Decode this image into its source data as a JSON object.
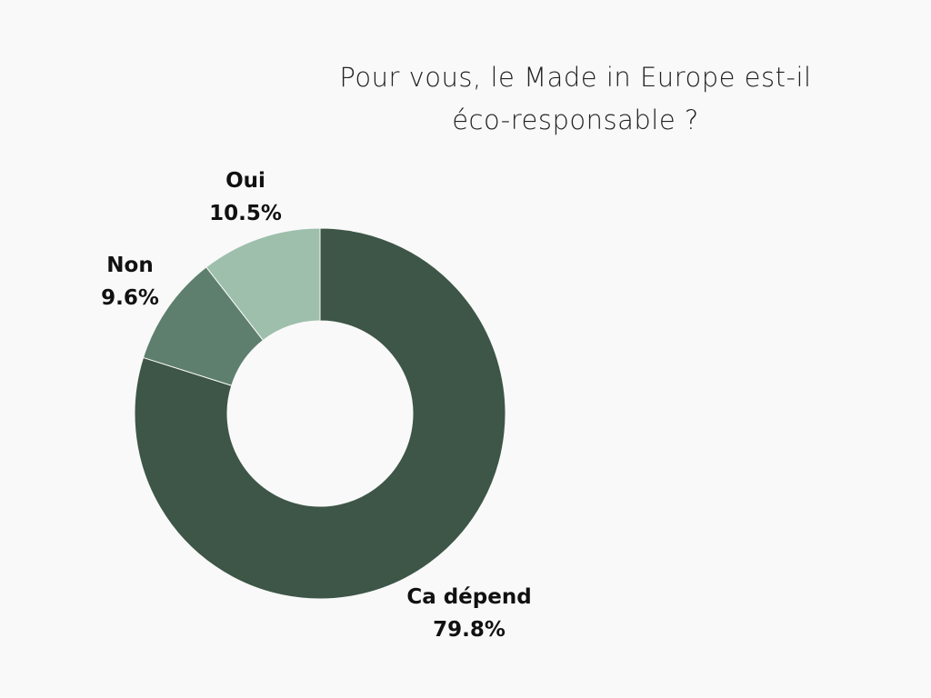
{
  "chart_data": {
    "type": "pie",
    "donut": true,
    "title_lines": [
      "Pour vous, le Made in Europe est-il",
      "éco-responsable ?"
    ],
    "slices": [
      {
        "label": "Ca dépend",
        "value": 79.8,
        "value_label": "79.8%",
        "color": "#3d5647"
      },
      {
        "label": "Non",
        "value": 9.6,
        "value_label": "9.6%",
        "color": "#5f7f6e"
      },
      {
        "label": "Oui",
        "value": 10.5,
        "value_label": "10.5%",
        "color": "#9dbfac"
      }
    ],
    "start": "top",
    "direction": "clockwise",
    "legend": "none"
  }
}
